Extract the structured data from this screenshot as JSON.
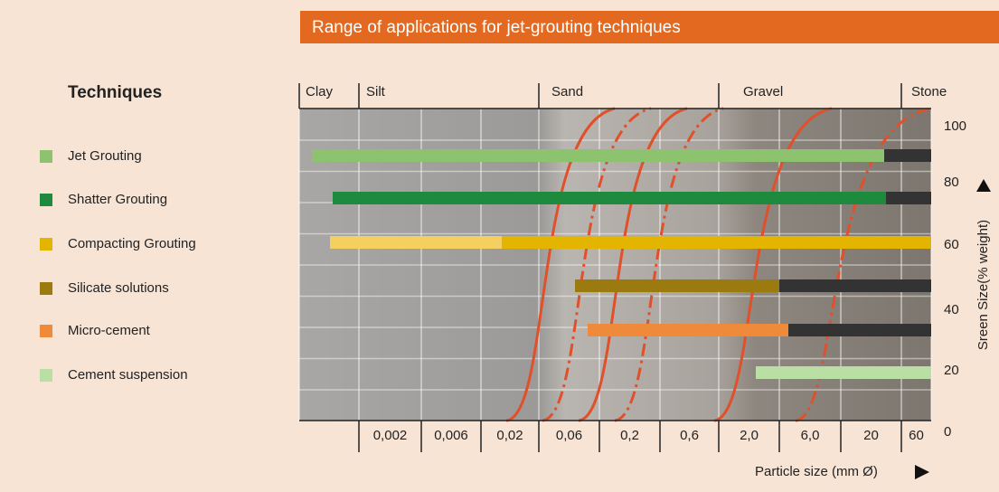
{
  "header": {
    "title": "Range of applications for jet-grouting techniques"
  },
  "legend": {
    "title": "Techniques",
    "items": [
      "Jet Grouting",
      "Shatter Grouting",
      "Compacting Grouting",
      "Silicate solutions",
      "Micro-cement",
      "Cement suspension"
    ]
  },
  "soil_classes": [
    "Clay",
    "Silt",
    "Sand",
    "Gravel",
    "Stone"
  ],
  "x_axis": {
    "label": "Particle size (mm Ø)",
    "ticks": [
      "0,002",
      "0,006",
      "0,02",
      "0,06",
      "0,2",
      "0,6",
      "2,0",
      "6,0",
      "20",
      "60"
    ]
  },
  "y_axis": {
    "label": "Sreen Size(% weight)",
    "ticks": [
      100,
      80,
      60,
      40,
      20,
      0
    ]
  }
}
